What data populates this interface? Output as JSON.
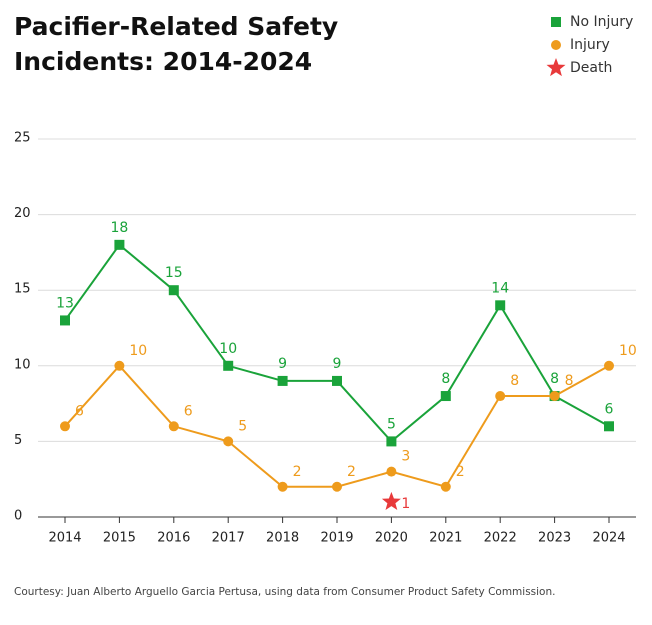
{
  "chart_data": {
    "type": "line",
    "title_lines": [
      "Pacifier-Related Safety",
      "Incidents: 2014-2024"
    ],
    "source": "Courtesy: Juan Alberto Arguello Garcia Pertusa, using data from Consumer Product Safety Commission.",
    "categories": [
      "2014",
      "2015",
      "2016",
      "2017",
      "2018",
      "2019",
      "2020",
      "2021",
      "2022",
      "2023",
      "2024"
    ],
    "series": [
      {
        "name": "No Injury",
        "color": "#1aa33a",
        "marker": "square",
        "line": true,
        "values": [
          13,
          18,
          15,
          10,
          9,
          9,
          5,
          8,
          14,
          8,
          6
        ]
      },
      {
        "name": "Injury",
        "color": "#ee9b1c",
        "marker": "circle",
        "line": true,
        "values": [
          6,
          10,
          6,
          5,
          2,
          2,
          3,
          2,
          8,
          8,
          10
        ]
      },
      {
        "name": "Death",
        "color": "#e8393a",
        "marker": "star",
        "line": false,
        "values": [
          null,
          null,
          null,
          null,
          null,
          null,
          1,
          null,
          null,
          null,
          null
        ]
      }
    ],
    "ylim": [
      0,
      25
    ],
    "yticks": [
      0,
      5,
      10,
      15,
      20,
      25
    ],
    "grid": true
  }
}
